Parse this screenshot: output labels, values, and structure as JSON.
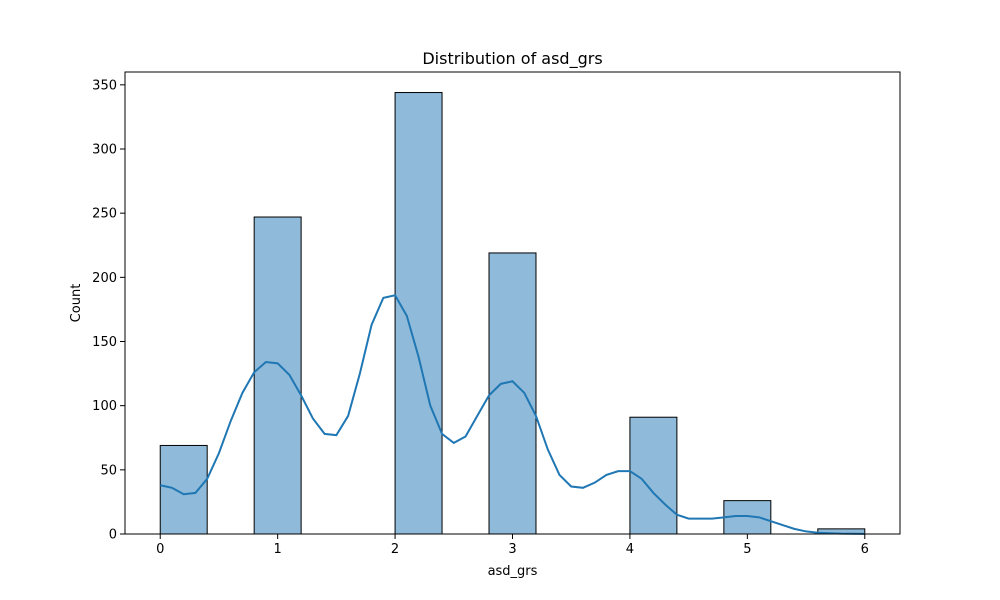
{
  "chart_data": {
    "type": "bar",
    "title": "Distribution of asd_grs",
    "xlabel": "asd_grs",
    "ylabel": "Count",
    "xlim": [
      -0.3,
      6.3
    ],
    "ylim": [
      0,
      360
    ],
    "xticks": [
      0,
      1,
      2,
      3,
      4,
      5,
      6
    ],
    "yticks": [
      0,
      50,
      100,
      150,
      200,
      250,
      300,
      350
    ],
    "bin_width": 0.4,
    "bars": [
      {
        "x0": 0.0,
        "x1": 0.4,
        "value": 69
      },
      {
        "x0": 0.8,
        "x1": 1.2,
        "value": 247
      },
      {
        "x0": 2.0,
        "x1": 2.4,
        "value": 344
      },
      {
        "x0": 2.8,
        "x1": 3.2,
        "value": 219
      },
      {
        "x0": 4.0,
        "x1": 4.4,
        "value": 91
      },
      {
        "x0": 4.8,
        "x1": 5.2,
        "value": 26
      },
      {
        "x0": 5.6,
        "x1": 6.0,
        "value": 4
      }
    ],
    "kde": {
      "x": [
        0.0,
        0.1,
        0.2,
        0.3,
        0.4,
        0.5,
        0.6,
        0.7,
        0.8,
        0.9,
        1.0,
        1.1,
        1.2,
        1.3,
        1.4,
        1.5,
        1.6,
        1.7,
        1.8,
        1.9,
        2.0,
        2.1,
        2.2,
        2.3,
        2.4,
        2.5,
        2.6,
        2.7,
        2.8,
        2.9,
        3.0,
        3.1,
        3.2,
        3.3,
        3.4,
        3.5,
        3.6,
        3.7,
        3.8,
        3.9,
        4.0,
        4.1,
        4.2,
        4.3,
        4.4,
        4.5,
        4.6,
        4.7,
        4.8,
        4.9,
        5.0,
        5.1,
        5.2,
        5.3,
        5.4,
        5.5,
        5.6,
        5.7,
        5.8,
        5.9,
        6.0
      ],
      "y": [
        38,
        36,
        31,
        32,
        43,
        63,
        88,
        110,
        126,
        134,
        133,
        124,
        108,
        90,
        78,
        77,
        92,
        125,
        163,
        184,
        186,
        170,
        138,
        100,
        78,
        71,
        76,
        92,
        108,
        117,
        119,
        110,
        92,
        66,
        46,
        37,
        36,
        40,
        46,
        49,
        49,
        43,
        32,
        23,
        15,
        12,
        12,
        12,
        13,
        14,
        14,
        13,
        10,
        7,
        4,
        2,
        1,
        0.6,
        0.3,
        0.2,
        0.1
      ]
    },
    "bar_fill": "#8fbad9",
    "bar_edge": "#000000",
    "kde_color": "#1f77b4",
    "grid": false,
    "legend": "none"
  }
}
